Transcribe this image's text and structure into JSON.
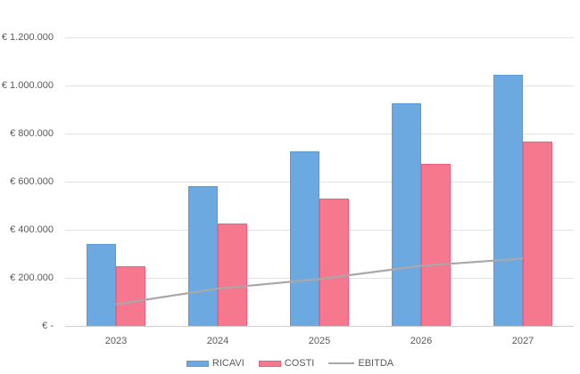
{
  "chart_data": {
    "type": "bar",
    "subtype": "combo-bar-line",
    "title": "",
    "xlabel": "",
    "ylabel": "",
    "categories": [
      "2023",
      "2024",
      "2025",
      "2026",
      "2027"
    ],
    "series": [
      {
        "name": "RICAVI",
        "type": "bar",
        "color": "#6ca9e0",
        "border_color": "#5b9bd5",
        "values": [
          340000,
          580000,
          725000,
          925000,
          1045000
        ]
      },
      {
        "name": "COSTI",
        "type": "bar",
        "color": "#f5788f",
        "border_color": "#ee5f7e",
        "values": [
          250000,
          425000,
          530000,
          675000,
          765000
        ]
      },
      {
        "name": "EBITDA",
        "type": "line",
        "color": "#a8a8a8",
        "values": [
          90000,
          155000,
          195000,
          250000,
          280000
        ]
      }
    ],
    "ylim": [
      0,
      1200000
    ],
    "y_tick_step": 200000,
    "y_ticks": [
      {
        "value": 0,
        "label": "€ -"
      },
      {
        "value": 200000,
        "label": "€ 200.000"
      },
      {
        "value": 400000,
        "label": "€ 400.000"
      },
      {
        "value": 600000,
        "label": "€ 600.000"
      },
      {
        "value": 800000,
        "label": "€ 800.000"
      },
      {
        "value": 1000000,
        "label": "€ 1.000.000"
      },
      {
        "value": 1200000,
        "label": "€ 1.200.000"
      }
    ],
    "grid": true,
    "legend_position": "bottom",
    "legend": [
      "RICAVI",
      "COSTI",
      "EBITDA"
    ],
    "colors": {
      "background": "#ffffff",
      "gridline": "#e2e2e2",
      "axis_line": "#cfcfcf",
      "text": "#595959"
    }
  }
}
